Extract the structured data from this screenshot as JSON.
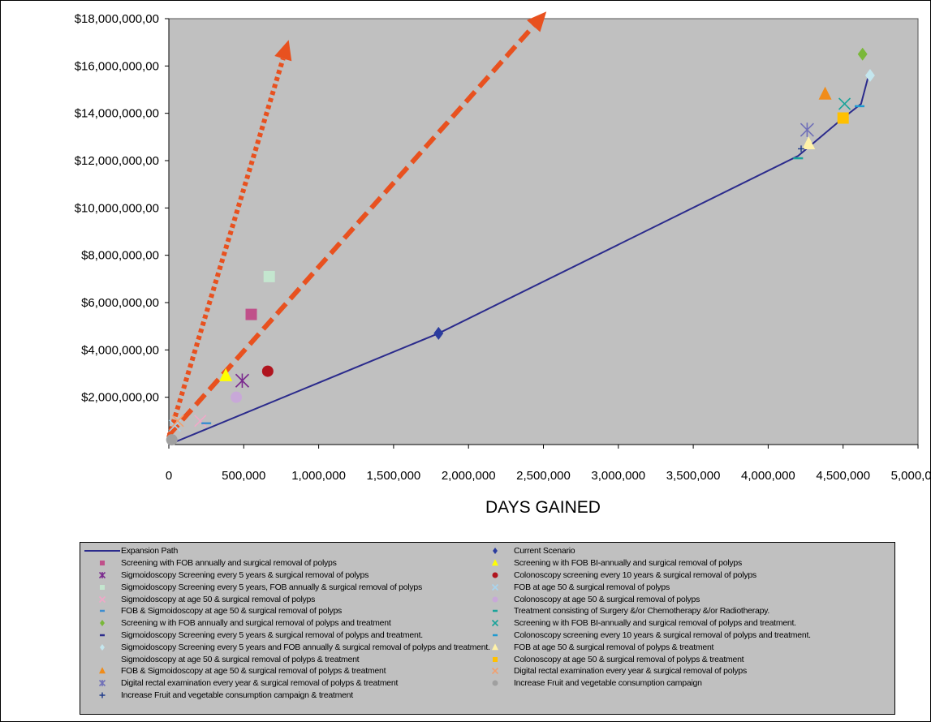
{
  "chart_data": {
    "type": "scatter",
    "title": "",
    "xlabel": "DAYS GAINED",
    "ylabel": "",
    "xlim": [
      0,
      5000000
    ],
    "ylim": [
      0,
      18000000
    ],
    "x_ticks": [
      0,
      500000,
      1000000,
      1500000,
      2000000,
      2500000,
      3000000,
      3500000,
      4000000,
      4500000,
      5000000
    ],
    "x_tick_labels": [
      "0",
      "500,000",
      "1,000,000",
      "1,500,000",
      "2,000,000",
      "2,500,000",
      "3,000,000",
      "3,500,000",
      "4,000,000",
      "4,500,000",
      "5,000,000"
    ],
    "y_ticks": [
      2000000,
      4000000,
      6000000,
      8000000,
      10000000,
      12000000,
      14000000,
      16000000,
      18000000
    ],
    "y_tick_labels": [
      "$2,000,000,00",
      "$4,000,000,00",
      "$6,000,000,00",
      "$8,000,000,00",
      "$10,000,000,00",
      "$12,000,000,00",
      "$14,000,000,00",
      "$16,000,000,00",
      "$18,000,000,00"
    ],
    "grid": false,
    "plot_background": "#c0c0c0",
    "legend_position": "bottom",
    "expansion_path": {
      "name": "Expansion Path",
      "color": "#2b2b8c",
      "points": [
        [
          0,
          0
        ],
        [
          1800000,
          4700000
        ],
        [
          4200000,
          12200000
        ],
        [
          4500000,
          13800000
        ],
        [
          4620000,
          14400000
        ],
        [
          4670000,
          15600000
        ]
      ]
    },
    "arrows": [
      {
        "style": "dotted",
        "color": "#e8511f",
        "from": [
          0,
          300000
        ],
        "to": [
          800000,
          17100000
        ]
      },
      {
        "style": "dashed",
        "color": "#e8511f",
        "from": [
          0,
          400000
        ],
        "to": [
          2520000,
          18300000
        ]
      }
    ],
    "series": [
      {
        "name": "Expansion Path",
        "marker": "line",
        "color": "#2b2b8c",
        "points": []
      },
      {
        "name": "Current Scenario",
        "marker": "diamond",
        "color": "#2b3c9e",
        "points": [
          [
            1800000,
            4700000
          ]
        ]
      },
      {
        "name": "Screening with FOB annually and surgical removal of polyps",
        "marker": "square",
        "color": "#c0508a",
        "points": [
          [
            550000,
            5500000
          ]
        ]
      },
      {
        "name": "Screening w ith FOB BI-annually and surgical removal of polyps",
        "marker": "triangle",
        "color": "#ffff00",
        "points": [
          [
            380000,
            2900000
          ]
        ]
      },
      {
        "name": "Sigmoidoscopy Screening every 5 years & surgical removal of polyps",
        "marker": "star",
        "color": "#7b2a8e",
        "points": [
          [
            490000,
            2700000
          ]
        ]
      },
      {
        "name": "Colonoscopy screening every 10 years & surgical removal of polyps",
        "marker": "circle",
        "color": "#b0141e",
        "points": [
          [
            660000,
            3100000
          ]
        ]
      },
      {
        "name": "Sigmoidoscopy Screening every 5 years, FOB annually & surgical removal of polyps",
        "marker": "square",
        "color": "#c4e6cf",
        "points": [
          [
            670000,
            7100000
          ]
        ]
      },
      {
        "name": "FOB at age 50 & surgical removal of polyps",
        "marker": "x",
        "color": "#a8d4ee",
        "points": [
          [
            40000,
            800000
          ]
        ]
      },
      {
        "name": "Sigmoidoscopy at age 50 & surgical removal of polyps",
        "marker": "x",
        "color": "#f0a8c8",
        "points": [
          [
            210000,
            1000000
          ]
        ]
      },
      {
        "name": "Colonoscopy at age 50 & surgical removal of polyps",
        "marker": "circle",
        "color": "#c8a8d8",
        "points": [
          [
            450000,
            2000000
          ]
        ]
      },
      {
        "name": "FOB & Sigmoidoscopy at age 50 & surgical removal of polyps",
        "marker": "dash",
        "color": "#3e8ed0",
        "points": [
          [
            250000,
            900000
          ]
        ]
      },
      {
        "name": "Treatment consisting of Surgery &/or Chemotherapy &/or Radiotherapy.",
        "marker": "dash",
        "color": "#1aa39a",
        "points": [
          [
            4200000,
            12100000
          ]
        ]
      },
      {
        "name": "Screening w ith FOB annually and surgical removal of polyps and treatment",
        "marker": "diamond",
        "color": "#7ab83a",
        "points": [
          [
            4630000,
            16500000
          ]
        ]
      },
      {
        "name": "Screening w ith FOB BI-annually and surgical removal of polyps and treatment.",
        "marker": "x",
        "color": "#1aa39a",
        "points": [
          [
            4510000,
            14400000
          ]
        ]
      },
      {
        "name": "Sigmoidoscopy Screening every 5 years & surgical removal of polyps and treatment.",
        "marker": "dash",
        "color": "#2b2b8c",
        "points": []
      },
      {
        "name": "Colonoscopy screening every 10 years & surgical removal of polyps and treatment.",
        "marker": "dash",
        "color": "#1e9ad0",
        "points": [
          [
            4610000,
            14300000
          ]
        ]
      },
      {
        "name": "Sigmoidoscopy Screening every 5 years and FOB annually & surgical removal of polyps and treatment.",
        "marker": "diamond",
        "color": "#c4e6ee",
        "points": [
          [
            4680000,
            15600000
          ]
        ]
      },
      {
        "name": "FOB at age 50 & surgical removal of polyps & treatment",
        "marker": "triangle",
        "color": "#fff2a8",
        "points": [
          [
            4270000,
            12700000
          ]
        ]
      },
      {
        "name": "Sigmoidoscopy at age 50 & surgical removal of polyps & treatment",
        "marker": "none",
        "color": "#f0c8a0",
        "points": []
      },
      {
        "name": "Colonoscopy at age 50 & surgical removal of polyps & treatment",
        "marker": "square",
        "color": "#ffc000",
        "points": [
          [
            4500000,
            13800000
          ]
        ]
      },
      {
        "name": "FOB & Sigmoidoscopy at age 50 & surgical removal of polyps & treatment",
        "marker": "triangle",
        "color": "#f08c1a",
        "points": [
          [
            4380000,
            14800000
          ]
        ]
      },
      {
        "name": "Digital rectal examination every year & surgical removal of polyps",
        "marker": "x",
        "color": "#f0a070",
        "points": [
          [
            60000,
            1000000
          ]
        ]
      },
      {
        "name": "Digital rectal examination every year & surgical removal of polyps & treatment",
        "marker": "star",
        "color": "#7070b8",
        "points": [
          [
            4260000,
            13300000
          ]
        ]
      },
      {
        "name": "Increase Fruit and vegetable consumption campaign",
        "marker": "circle",
        "color": "#a0a0a0",
        "points": [
          [
            20000,
            200000
          ]
        ]
      },
      {
        "name": "Increase Fruit and vegetable consumption campaign & treatment",
        "marker": "plus",
        "color": "#1e3a8a",
        "points": [
          [
            4220000,
            12500000
          ]
        ]
      }
    ]
  }
}
